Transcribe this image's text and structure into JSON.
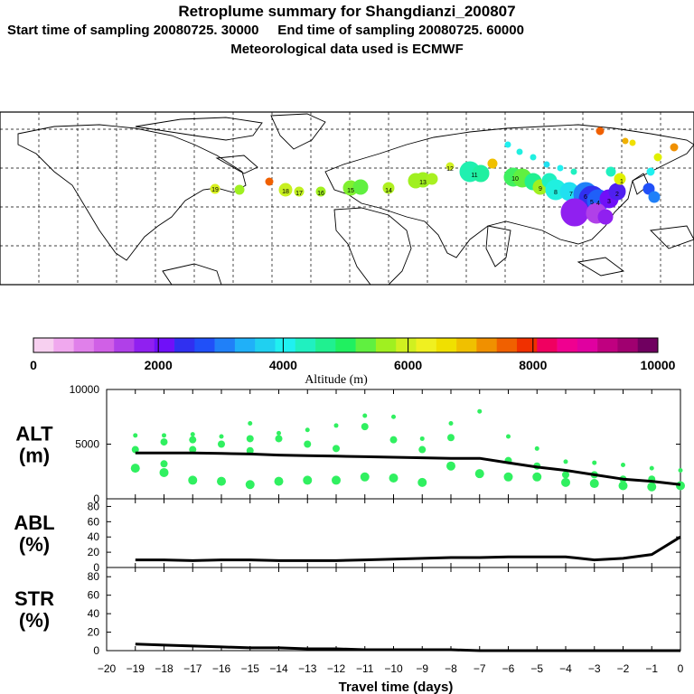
{
  "header": {
    "title": "Retroplume summary for Shangdianzi_200807",
    "sampling": "Start time of sampling 20080725. 30000     End time of sampling 20080725. 60000",
    "met": "Meteorological data used is ECMWF"
  },
  "colorbar": {
    "ticks": [
      "0",
      "2000",
      "4000",
      "6000",
      "8000",
      "10000"
    ],
    "label": "Altitude (m)",
    "colors": [
      "#f7d0f0",
      "#f0a8ee",
      "#e080ea",
      "#d060e6",
      "#b040e8",
      "#9020f0",
      "#7010f8",
      "#3030f0",
      "#2050f8",
      "#2080f8",
      "#20b0f8",
      "#20d0f0",
      "#20f0f0",
      "#20f0c0",
      "#20f090",
      "#20f060",
      "#60f040",
      "#a0f020",
      "#d0f020",
      "#f0f020",
      "#f0e000",
      "#f0c000",
      "#f09000",
      "#f06000",
      "#f03000",
      "#f00060",
      "#f00090",
      "#e000a0",
      "#c00080",
      "#a00070",
      "#700060"
    ]
  },
  "map_labels": [
    "19",
    "18",
    "17",
    "16",
    "15",
    "14",
    "13",
    "12",
    "11",
    "10",
    "9",
    "8",
    "7",
    "6",
    "5",
    "4",
    "3",
    "2",
    "1"
  ],
  "chart_data": [
    {
      "type": "line",
      "name": "ALT",
      "ylabel": "ALT\n(m)",
      "ylabel_line1": "ALT",
      "ylabel_line2": "(m)",
      "ylim": [
        0,
        10000
      ],
      "yticks": [
        "0",
        "5000",
        "10000"
      ],
      "x": [
        -19,
        -18,
        -17,
        -16,
        -15,
        -14,
        -13,
        -12,
        -11,
        -10,
        -9,
        -8,
        -7,
        -6,
        -5,
        -4,
        -3,
        -2,
        -1,
        0
      ],
      "values": [
        4200,
        4200,
        4200,
        4150,
        4100,
        4000,
        3950,
        3900,
        3850,
        3800,
        3750,
        3700,
        3700,
        3300,
        2900,
        2600,
        2200,
        1800,
        1600,
        1300
      ],
      "scatter_color": "#30f060",
      "scatter": [
        {
          "x": -19,
          "y": [
            5800,
            4500,
            2800
          ]
        },
        {
          "x": -18,
          "y": [
            5800,
            5200,
            3200,
            2400
          ]
        },
        {
          "x": -17,
          "y": [
            5900,
            5400,
            4500,
            1700
          ]
        },
        {
          "x": -16,
          "y": [
            5700,
            5000,
            1600
          ]
        },
        {
          "x": -15,
          "y": [
            6900,
            5500,
            4400,
            1300
          ]
        },
        {
          "x": -14,
          "y": [
            6000,
            5500,
            1600
          ]
        },
        {
          "x": -13,
          "y": [
            6300,
            5000,
            1700
          ]
        },
        {
          "x": -12,
          "y": [
            6700,
            4600,
            1700
          ]
        },
        {
          "x": -11,
          "y": [
            7600,
            6600,
            2000
          ]
        },
        {
          "x": -10,
          "y": [
            7500,
            5400,
            1900
          ]
        },
        {
          "x": -9,
          "y": [
            5500,
            4500,
            1500
          ]
        },
        {
          "x": -8,
          "y": [
            6900,
            5600,
            3000
          ]
        },
        {
          "x": -7,
          "y": [
            8000,
            2300
          ]
        },
        {
          "x": -6,
          "y": [
            5700,
            3500,
            2000
          ]
        },
        {
          "x": -5,
          "y": [
            4600,
            3000,
            2000
          ]
        },
        {
          "x": -4,
          "y": [
            3400,
            2200,
            1500
          ]
        },
        {
          "x": -3,
          "y": [
            3300,
            2200,
            1400
          ]
        },
        {
          "x": -2,
          "y": [
            3100,
            1800,
            1200
          ]
        },
        {
          "x": -1,
          "y": [
            2800,
            1800,
            1100
          ]
        },
        {
          "x": 0,
          "y": [
            2600,
            1200
          ]
        }
      ]
    },
    {
      "type": "line",
      "name": "ABL",
      "ylabel_line1": "ABL",
      "ylabel_line2": "(%)",
      "ylim": [
        0,
        90
      ],
      "yticks": [
        "0",
        "20",
        "40",
        "60",
        "80"
      ],
      "x": [
        -19,
        -18,
        -17,
        -16,
        -15,
        -14,
        -13,
        -12,
        -11,
        -10,
        -9,
        -8,
        -7,
        -6,
        -5,
        -4,
        -3,
        -2,
        -1,
        0
      ],
      "values": [
        10,
        10,
        9,
        10,
        10,
        9,
        9,
        9,
        10,
        11,
        12,
        13,
        13,
        14,
        14,
        14,
        10,
        12,
        17,
        40
      ]
    },
    {
      "type": "line",
      "name": "STR",
      "ylabel_line1": "STR",
      "ylabel_line2": "(%)",
      "ylim": [
        0,
        90
      ],
      "yticks": [
        "0",
        "20",
        "40",
        "60",
        "80"
      ],
      "x": [
        -19,
        -18,
        -17,
        -16,
        -15,
        -14,
        -13,
        -12,
        -11,
        -10,
        -9,
        -8,
        -7,
        -6,
        -5,
        -4,
        -3,
        -2,
        -1,
        0
      ],
      "values": [
        7,
        6,
        5,
        4,
        3,
        3,
        2,
        2,
        1,
        1,
        1,
        1,
        0,
        0,
        0,
        0,
        0,
        0,
        0,
        0
      ]
    }
  ],
  "xaxis": {
    "ticks": [
      "−20",
      "−19",
      "−18",
      "−17",
      "−16",
      "−15",
      "−14",
      "−13",
      "−12",
      "−11",
      "−10",
      "−9",
      "−8",
      "−7",
      "−6",
      "−5",
      "−4",
      "−3",
      "−2",
      "−1",
      "0"
    ],
    "label": "Travel time (days)"
  }
}
